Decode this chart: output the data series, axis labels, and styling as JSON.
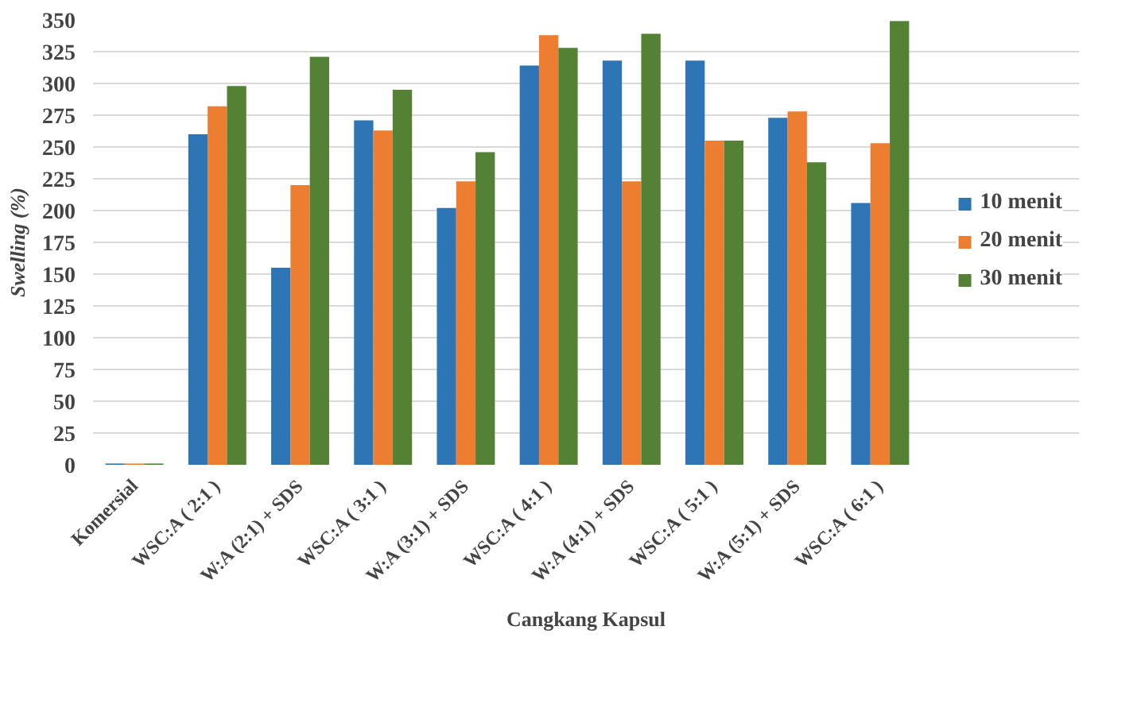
{
  "chart_data": {
    "type": "bar",
    "xlabel": "Cangkang Kapsul",
    "ylabel": "Swelling (%)",
    "categories": [
      "Komersial",
      "WSC:A ( 2:1 )",
      "W:A (2:1) + SDS",
      "WSC:A ( 3:1 )",
      "W:A (3:1) + SDS",
      "WSC:A ( 4:1 )",
      "W:A (4:1) + SDS",
      "WSC:A ( 5:1 )",
      "W:A (5:1) + SDS",
      "WSC:A ( 6:1 )"
    ],
    "series": [
      {
        "name": "10 menit",
        "color": "#2e75b6",
        "values": [
          1,
          260,
          155,
          271,
          202,
          314,
          318,
          318,
          273,
          206
        ]
      },
      {
        "name": "20 menit",
        "color": "#ed7d31",
        "values": [
          1,
          282,
          220,
          263,
          223,
          338,
          223,
          255,
          278,
          253
        ]
      },
      {
        "name": "30 menit",
        "color": "#548235",
        "values": [
          1,
          298,
          321,
          295,
          246,
          328,
          339,
          255,
          238,
          349
        ]
      }
    ],
    "ylim": [
      0,
      350
    ],
    "yticks": [
      0,
      25,
      50,
      75,
      100,
      125,
      150,
      175,
      200,
      225,
      250,
      275,
      300,
      325,
      350
    ],
    "grid": "y",
    "legend": "right"
  }
}
